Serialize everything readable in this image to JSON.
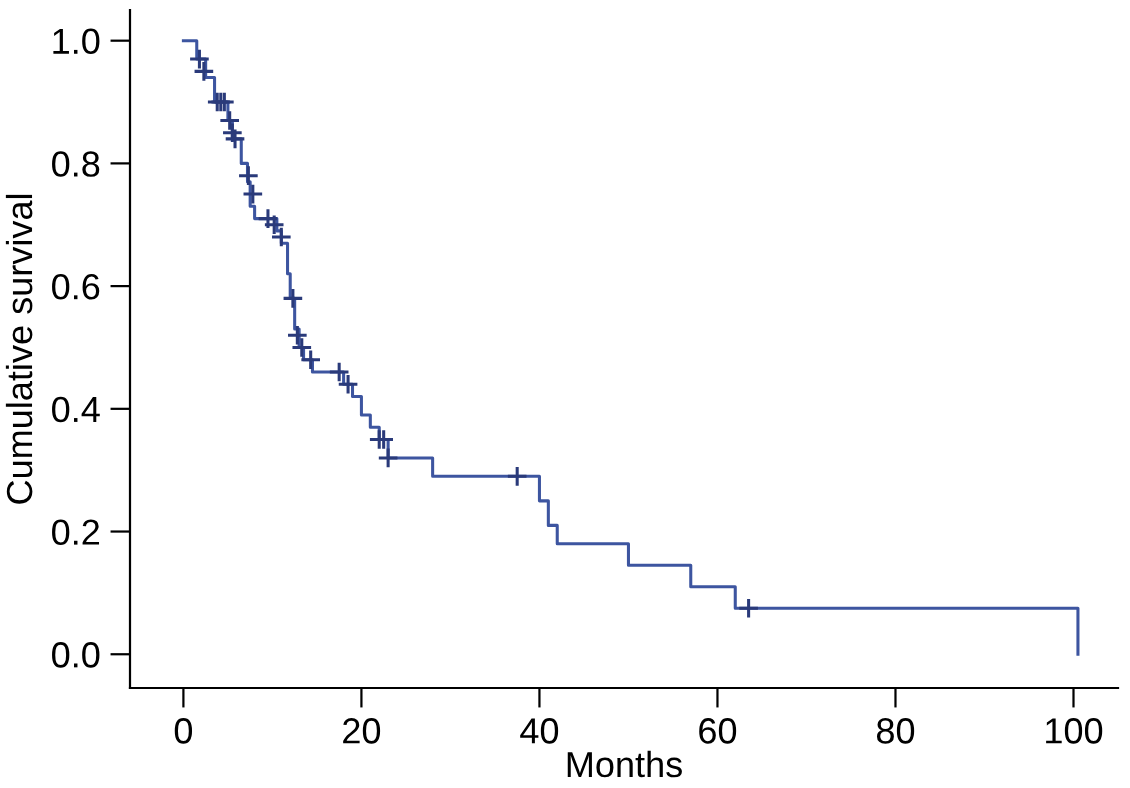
{
  "chart_data": {
    "type": "step",
    "xlabel": "Months",
    "ylabel": "Cumulative survival",
    "xlim": [
      -6,
      105
    ],
    "ylim": [
      -0.055,
      1.05
    ],
    "xticks": [
      0,
      20,
      40,
      60,
      80,
      100
    ],
    "yticks": [
      {
        "value": 0,
        "label": "0.0"
      },
      {
        "value": 0.2,
        "label": "0.2"
      },
      {
        "value": 0.4,
        "label": "0.4"
      },
      {
        "value": 0.6,
        "label": "0.6"
      },
      {
        "value": 0.8,
        "label": "0.8"
      },
      {
        "value": 1,
        "label": "1.0"
      }
    ],
    "grid": false,
    "series": [
      {
        "color": "#3d55a0",
        "line_style": "solid",
        "marker": "none",
        "x": [
          0,
          1.3,
          1.5,
          2.5,
          3.5,
          5,
          5.5,
          6.5,
          7.2,
          7.5,
          8,
          10.5,
          11,
          11.7,
          12,
          12.5,
          13,
          13.5,
          14.5,
          18,
          19,
          20,
          21,
          22,
          23,
          28,
          40,
          41,
          42,
          50,
          57,
          62,
          100.5,
          100.5
        ],
        "values": [
          1.0,
          1.0,
          0.97,
          0.94,
          0.9,
          0.87,
          0.84,
          0.8,
          0.77,
          0.73,
          0.71,
          0.69,
          0.67,
          0.62,
          0.58,
          0.53,
          0.5,
          0.48,
          0.46,
          0.44,
          0.42,
          0.39,
          0.37,
          0.35,
          0.32,
          0.29,
          0.25,
          0.21,
          0.18,
          0.145,
          0.11,
          0.075,
          0.075,
          0.0
        ]
      },
      {
        "type": "scatter",
        "color": "#2a3a7a",
        "marker": "cross",
        "x": [
          1.8,
          2.3,
          3.8,
          4.2,
          4.6,
          5.2,
          5.5,
          5.8,
          7.3,
          7.8,
          9.5,
          10.2,
          11,
          12.3,
          12.8,
          13.3,
          14.3,
          17.5,
          18.5,
          22,
          22.5,
          23,
          37.5,
          63.5
        ],
        "values": [
          0.97,
          0.95,
          0.9,
          0.9,
          0.9,
          0.87,
          0.85,
          0.84,
          0.78,
          0.75,
          0.71,
          0.7,
          0.68,
          0.58,
          0.52,
          0.5,
          0.48,
          0.46,
          0.44,
          0.35,
          0.35,
          0.32,
          0.29,
          0.075
        ]
      }
    ]
  }
}
